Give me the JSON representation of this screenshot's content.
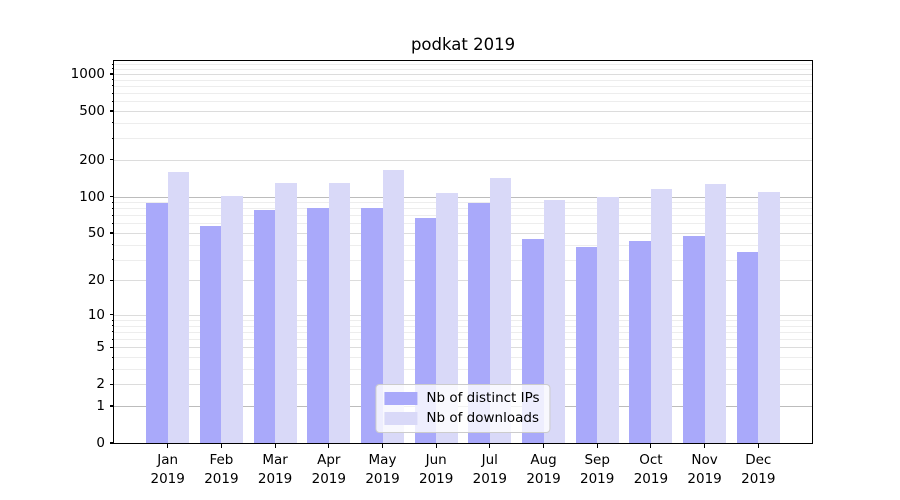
{
  "chart_data": {
    "type": "bar",
    "title": "podkat 2019",
    "categories": [
      "Jan",
      "Feb",
      "Mar",
      "Apr",
      "May",
      "Jun",
      "Jul",
      "Aug",
      "Sep",
      "Oct",
      "Nov",
      "Dec"
    ],
    "category_year": "2019",
    "series": [
      {
        "name": "Nb of distinct IPs",
        "color": "#a9a9fa",
        "values": [
          88,
          57,
          77,
          80,
          80,
          66,
          88,
          45,
          38,
          43,
          47,
          35
        ]
      },
      {
        "name": "Nb of downloads",
        "color": "#d9d9f8",
        "values": [
          158,
          101,
          130,
          130,
          166,
          107,
          142,
          93,
          99,
          115,
          127,
          109
        ]
      }
    ],
    "xlabel": "",
    "ylabel": "",
    "yscale": "log10(1+y)",
    "yticks": [
      0,
      1,
      2,
      5,
      10,
      20,
      50,
      100,
      200,
      500,
      1000
    ],
    "ylim": [
      0,
      1276
    ],
    "grid": true,
    "legend_position": "lower center",
    "colors": {
      "major_grid": "#bcbcbc",
      "tick_grid": "#dcdcdc",
      "minor_grid": "#ededed",
      "spine": "#000000"
    }
  }
}
